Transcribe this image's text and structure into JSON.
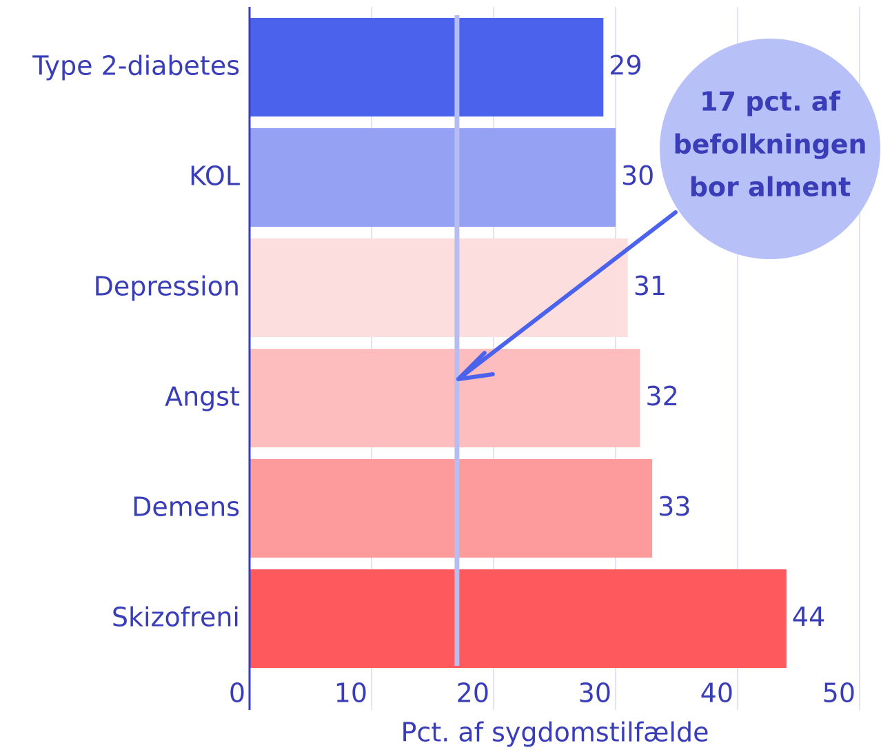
{
  "chart_data": {
    "type": "bar",
    "orientation": "horizontal",
    "categories": [
      "Type 2-diabetes",
      "KOL",
      "Depression",
      "Angst",
      "Demens",
      "Skizofreni"
    ],
    "values": [
      29,
      30,
      31,
      32,
      33,
      44
    ],
    "colors": [
      "#4a62ec",
      "#95a2f3",
      "#fddede",
      "#fdbcbd",
      "#fd9b9c",
      "#fe5a5d"
    ],
    "xlim": [
      0,
      50
    ],
    "xticks": [
      0,
      10,
      20,
      30,
      40,
      50
    ],
    "xlabel": "Pct. af sygdomstilfælde",
    "grid": true,
    "reference_line": {
      "value": 17,
      "color": "#b5bdf2"
    },
    "annotation": {
      "lines": [
        "17 pct. af",
        "befolkningen",
        "bor alment"
      ],
      "color": "#b7c0f7"
    }
  }
}
